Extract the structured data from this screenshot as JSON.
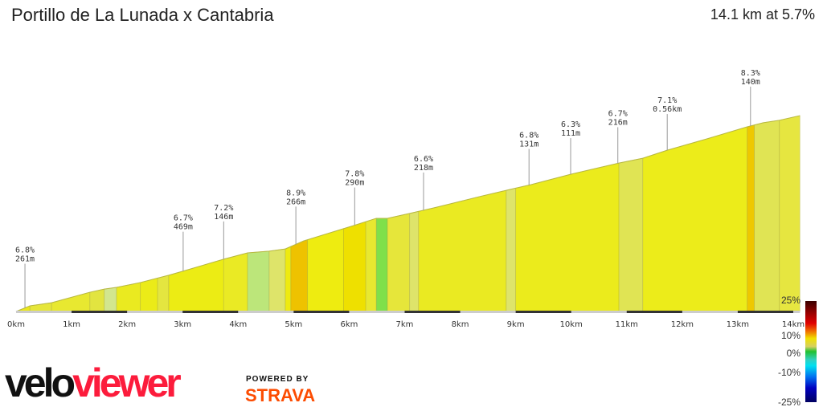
{
  "header": {
    "title": "Portillo de La Lunada x Cantabria",
    "summary": "14.1 km at 5.7%"
  },
  "profile": {
    "distance_unit": "km",
    "x_ticks": [
      "0km",
      "1km",
      "2km",
      "3km",
      "4km",
      "5km",
      "6km",
      "7km",
      "8km",
      "9km",
      "10km",
      "11km",
      "12km",
      "13km",
      "14km"
    ],
    "points": [
      [
        0,
        0
      ],
      [
        0.25,
        23
      ],
      [
        0.64,
        36
      ],
      [
        1.33,
        79
      ],
      [
        1.59,
        92
      ],
      [
        1.81,
        99
      ],
      [
        2.24,
        119
      ],
      [
        2.75,
        149
      ],
      [
        3.04,
        168
      ],
      [
        3.74,
        215
      ],
      [
        4.17,
        241
      ],
      [
        4.56,
        248
      ],
      [
        4.85,
        257
      ],
      [
        5.18,
        290
      ],
      [
        6.08,
        353
      ],
      [
        6.49,
        383
      ],
      [
        6.69,
        383
      ],
      [
        7.09,
        403
      ],
      [
        7.53,
        426
      ],
      [
        8.4,
        475
      ],
      [
        8.83,
        498
      ],
      [
        9.27,
        521
      ],
      [
        9.99,
        564
      ],
      [
        10.86,
        610
      ],
      [
        11.29,
        630
      ],
      [
        11.73,
        663
      ],
      [
        12.45,
        710
      ],
      [
        13.17,
        759
      ],
      [
        13.46,
        776
      ],
      [
        13.75,
        786
      ],
      [
        14.12,
        805
      ]
    ],
    "segments": [
      {
        "from": 0,
        "to": 0.25,
        "color": "#ece81a"
      },
      {
        "from": 0.25,
        "to": 0.64,
        "color": "#e6e63a"
      },
      {
        "from": 0.64,
        "to": 1.33,
        "color": "#e8e830"
      },
      {
        "from": 1.33,
        "to": 1.59,
        "color": "#e2e440"
      },
      {
        "from": 1.59,
        "to": 1.81,
        "color": "#d2e68e"
      },
      {
        "from": 1.81,
        "to": 2.24,
        "color": "#eaea20"
      },
      {
        "from": 2.24,
        "to": 2.55,
        "color": "#ebeb18"
      },
      {
        "from": 2.55,
        "to": 2.75,
        "color": "#e4e640"
      },
      {
        "from": 2.75,
        "to": 3.74,
        "color": "#ecec14"
      },
      {
        "from": 3.74,
        "to": 4.17,
        "color": "#eaea24"
      },
      {
        "from": 4.17,
        "to": 4.56,
        "color": "#bce67a"
      },
      {
        "from": 4.56,
        "to": 4.85,
        "color": "#dee46a"
      },
      {
        "from": 4.85,
        "to": 4.95,
        "color": "#eeea10"
      },
      {
        "from": 4.95,
        "to": 5.25,
        "color": "#eec200"
      },
      {
        "from": 5.25,
        "to": 5.9,
        "color": "#eeec10"
      },
      {
        "from": 5.9,
        "to": 6.3,
        "color": "#eee000"
      },
      {
        "from": 6.3,
        "to": 6.49,
        "color": "#e8e830"
      },
      {
        "from": 6.49,
        "to": 6.69,
        "color": "#80e04a"
      },
      {
        "from": 6.69,
        "to": 7.09,
        "color": "#e6e63a"
      },
      {
        "from": 7.09,
        "to": 7.25,
        "color": "#dee46a"
      },
      {
        "from": 7.25,
        "to": 8.83,
        "color": "#eaea22"
      },
      {
        "from": 8.83,
        "to": 9.0,
        "color": "#dee46a"
      },
      {
        "from": 9.0,
        "to": 10.86,
        "color": "#ebeb1c"
      },
      {
        "from": 10.86,
        "to": 11.29,
        "color": "#e0e454"
      },
      {
        "from": 11.29,
        "to": 13.17,
        "color": "#ecec1a"
      },
      {
        "from": 13.17,
        "to": 13.3,
        "color": "#eec800"
      },
      {
        "from": 13.3,
        "to": 13.75,
        "color": "#e0e454"
      },
      {
        "from": 13.75,
        "to": 14.12,
        "color": "#e6e640"
      }
    ],
    "annotations": [
      {
        "km": 0.16,
        "gradient": "6.8%",
        "length": "261m"
      },
      {
        "km": 3.01,
        "gradient": "6.7%",
        "length": "469m"
      },
      {
        "km": 3.74,
        "gradient": "7.2%",
        "length": "146m"
      },
      {
        "km": 5.04,
        "gradient": "8.9%",
        "length": "266m"
      },
      {
        "km": 6.1,
        "gradient": "7.8%",
        "length": "290m"
      },
      {
        "km": 7.34,
        "gradient": "6.6%",
        "length": "218m"
      },
      {
        "km": 9.24,
        "gradient": "6.8%",
        "length": "131m"
      },
      {
        "km": 9.99,
        "gradient": "6.3%",
        "length": "111m"
      },
      {
        "km": 10.84,
        "gradient": "6.7%",
        "length": "216m"
      },
      {
        "km": 11.73,
        "gradient": "7.1%",
        "length": "0.56km"
      },
      {
        "km": 13.23,
        "gradient": "8.3%",
        "length": "140m"
      }
    ]
  },
  "legend": {
    "labels": [
      "25%",
      "10%",
      "0%",
      "-10%",
      "-25%"
    ]
  },
  "branding": {
    "logo_part1": "velo",
    "logo_part2": "viewer",
    "powered_by": "POWERED BY",
    "strava": "STRAVA",
    "strava_color": "#fc4c02",
    "logo_color": "#fc1c3c"
  }
}
